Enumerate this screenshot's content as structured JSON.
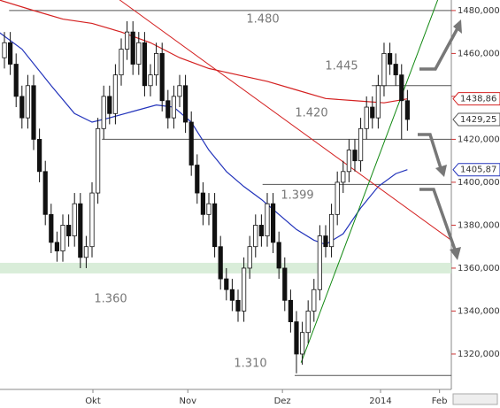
{
  "chart_data": {
    "type": "candlestick",
    "xlim": [
      -0.76,
      76.52
    ],
    "xticks": [
      {
        "value": 15.15,
        "label": "Okt"
      },
      {
        "value": 31.4,
        "label": "Nov"
      },
      {
        "value": 47.6,
        "label": "Dez"
      },
      {
        "value": 64.4,
        "label": "2014"
      },
      {
        "value": 74.5,
        "label": "Feb"
      }
    ],
    "ylim": [
      1303.5,
      1484.9
    ],
    "yticks": [
      {
        "value": 1320,
        "label": "1320,000"
      },
      {
        "value": 1340,
        "label": "1340,000"
      },
      {
        "value": 1360,
        "label": "1360,000"
      },
      {
        "value": 1380,
        "label": "1380,000"
      },
      {
        "value": 1400,
        "label": "1400,000"
      },
      {
        "value": 1420,
        "label": "1420,000"
      },
      {
        "value": 1440,
        "label": "1440,000"
      },
      {
        "value": 1460,
        "label": "1460,000"
      },
      {
        "value": 1480,
        "label": "1480,000"
      }
    ],
    "open": [
      1458,
      1465,
      1455,
      1440,
      1430,
      1445,
      1420,
      1405,
      1385,
      1372,
      1368,
      1380,
      1375,
      1390,
      1365,
      1370,
      1395,
      1425,
      1440,
      1432,
      1450,
      1462,
      1470,
      1455,
      1465,
      1445,
      1450,
      1460,
      1438,
      1430,
      1440,
      1445,
      1428,
      1408,
      1395,
      1385,
      1390,
      1370,
      1355,
      1350,
      1345,
      1340,
      1360,
      1370,
      1380,
      1375,
      1390,
      1372,
      1360,
      1345,
      1335,
      1320,
      1330,
      1340,
      1350,
      1375,
      1370,
      1385,
      1400,
      1405,
      1415,
      1410,
      1425,
      1435,
      1430,
      1445,
      1460,
      1455,
      1450,
      1438
    ],
    "high": [
      1470,
      1470,
      1460,
      1445,
      1450,
      1450,
      1425,
      1410,
      1390,
      1377,
      1385,
      1385,
      1395,
      1395,
      1375,
      1400,
      1430,
      1445,
      1445,
      1455,
      1467,
      1475,
      1475,
      1470,
      1470,
      1455,
      1465,
      1465,
      1443,
      1445,
      1450,
      1450,
      1433,
      1413,
      1400,
      1395,
      1395,
      1375,
      1360,
      1355,
      1350,
      1365,
      1375,
      1385,
      1385,
      1395,
      1395,
      1377,
      1365,
      1350,
      1340,
      1335,
      1345,
      1355,
      1380,
      1380,
      1390,
      1405,
      1410,
      1420,
      1420,
      1430,
      1440,
      1440,
      1450,
      1465,
      1465,
      1460,
      1455,
      1443
    ],
    "low": [
      1453,
      1450,
      1435,
      1425,
      1425,
      1415,
      1400,
      1380,
      1367,
      1363,
      1363,
      1370,
      1370,
      1360,
      1360,
      1365,
      1390,
      1420,
      1427,
      1427,
      1445,
      1457,
      1450,
      1450,
      1440,
      1440,
      1445,
      1433,
      1425,
      1425,
      1435,
      1423,
      1403,
      1390,
      1380,
      1380,
      1365,
      1350,
      1345,
      1340,
      1335,
      1335,
      1355,
      1365,
      1370,
      1370,
      1367,
      1355,
      1340,
      1330,
      1311,
      1315,
      1325,
      1335,
      1345,
      1365,
      1365,
      1380,
      1395,
      1400,
      1405,
      1405,
      1420,
      1425,
      1425,
      1440,
      1450,
      1445,
      1420,
      1424
    ],
    "close": [
      1465,
      1455,
      1440,
      1430,
      1445,
      1420,
      1405,
      1385,
      1372,
      1368,
      1380,
      1375,
      1390,
      1365,
      1370,
      1395,
      1425,
      1440,
      1432,
      1450,
      1462,
      1470,
      1455,
      1465,
      1445,
      1450,
      1460,
      1438,
      1430,
      1440,
      1445,
      1428,
      1408,
      1395,
      1385,
      1390,
      1370,
      1355,
      1350,
      1345,
      1340,
      1360,
      1370,
      1380,
      1375,
      1390,
      1372,
      1360,
      1345,
      1335,
      1320,
      1330,
      1340,
      1350,
      1375,
      1370,
      1385,
      1400,
      1405,
      1415,
      1410,
      1425,
      1435,
      1430,
      1445,
      1460,
      1455,
      1450,
      1438,
      1429.25
    ],
    "series": [
      {
        "color": "#d42020",
        "x": [
          -1,
          5,
          10,
          15,
          20,
          25,
          30,
          35,
          40,
          45,
          50,
          55,
          60,
          65,
          69
        ],
        "values": [
          1485,
          1480,
          1476,
          1474,
          1470,
          1465,
          1458,
          1453,
          1450,
          1447,
          1443,
          1439,
          1438,
          1437,
          1438.86
        ]
      },
      {
        "color": "#2233bb",
        "x": [
          -1,
          3,
          8,
          12,
          15,
          18,
          22,
          26,
          29,
          32,
          35,
          38,
          41,
          44,
          47,
          50,
          53,
          55,
          58,
          61,
          64,
          67,
          69
        ],
        "values": [
          1470,
          1462,
          1445,
          1432,
          1428,
          1430,
          1433,
          1436,
          1435,
          1428,
          1415,
          1405,
          1398,
          1392,
          1385,
          1378,
          1373,
          1371,
          1376,
          1388,
          1398,
          1404,
          1405.87
        ]
      }
    ],
    "trendlines": [
      {
        "color": "#d42020",
        "x": [
          19.7,
          76.5
        ],
        "values": [
          1485,
          1373
        ]
      },
      {
        "color": "#118811",
        "x": [
          50.8,
          74.2
        ],
        "values": [
          1316,
          1485
        ]
      }
    ],
    "levels": [
      {
        "value": 1480,
        "label": "1.480",
        "start": 0.8
      },
      {
        "value": 1445,
        "label": "1.445",
        "start": 62.9
      },
      {
        "value": 1420,
        "label": "1.420",
        "start": 16.7
      },
      {
        "value": 1399,
        "label": "1.399",
        "start": 44.2
      },
      {
        "value": 1360,
        "label": "1.360",
        "start": -0.76
      },
      {
        "value": 1310,
        "label": "1.310",
        "start": 49.7
      }
    ],
    "price_tags": [
      {
        "value": 1438.86,
        "label": "1438,86",
        "color": "#d42020"
      },
      {
        "value": 1429.25,
        "label": "1429,25",
        "color": "#555555"
      },
      {
        "value": 1405.87,
        "label": "1405,87",
        "color": "#2233bb"
      }
    ]
  }
}
